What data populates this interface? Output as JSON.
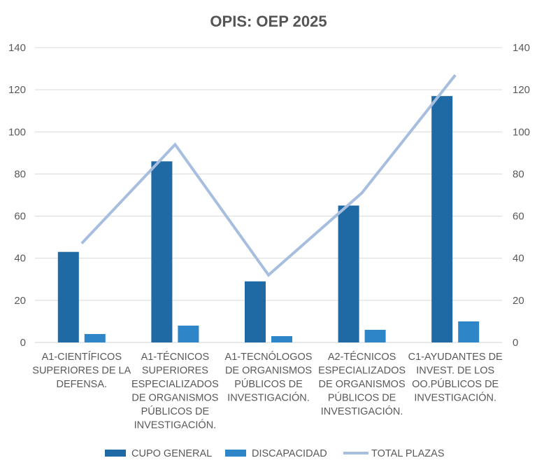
{
  "chart_data": {
    "type": "bar",
    "title": "OPIS: OEP 2025",
    "categories": [
      [
        "A1-CIENTÍFICOS",
        "SUPERIORES DE LA",
        "DEFENSA."
      ],
      [
        "A1-TÉCNICOS",
        "SUPERIORES",
        "ESPECIALIZADOS",
        "DE ORGANISMOS",
        "PÚBLICOS DE",
        "INVESTIGACIÓN."
      ],
      [
        "A1-TECNÓLOGOS",
        "DE ORGANISMOS",
        "PÚBLICOS DE",
        "INVESTIGACIÓN."
      ],
      [
        "A2-TÉCNICOS",
        "ESPECIALIZADOS",
        "DE ORGANISMOS",
        "PÚBLICOS DE",
        "INVESTIGACIÓN."
      ],
      [
        "C1-AYUDANTES DE",
        "INVEST. DE LOS",
        "OO.PÚBLICOS DE",
        "INVESTIGACIÓN."
      ]
    ],
    "series": [
      {
        "name": "CUPO GENERAL",
        "kind": "bar",
        "axis": "left",
        "color": "#1f6aa5",
        "values": [
          43,
          86,
          29,
          65,
          117
        ]
      },
      {
        "name": "DISCAPACIDAD",
        "kind": "bar",
        "axis": "left",
        "color": "#2e86c9",
        "values": [
          4,
          8,
          3,
          6,
          10
        ]
      },
      {
        "name": "TOTAL PLAZAS",
        "kind": "line",
        "axis": "right",
        "color": "#a7bedf",
        "values": [
          47,
          94,
          32,
          71,
          127
        ]
      }
    ],
    "ylim": [
      0,
      140
    ],
    "y2lim": [
      0,
      140
    ],
    "yticks": [
      0,
      20,
      40,
      60,
      80,
      100,
      120,
      140
    ],
    "grid": true,
    "legend": "bottom"
  }
}
